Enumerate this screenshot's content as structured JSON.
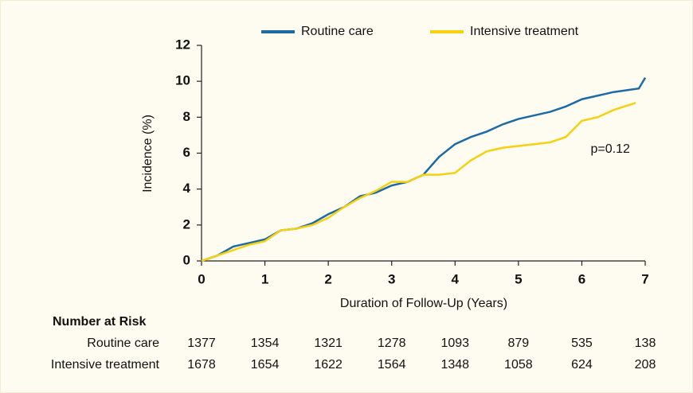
{
  "chart_data": {
    "type": "line",
    "xlabel": "Duration of Follow-Up (Years)",
    "ylabel": "Incidence (%)",
    "xlim": [
      0,
      7
    ],
    "xticks": [
      0,
      1,
      2,
      3,
      4,
      5,
      6,
      7
    ],
    "ylim": [
      0,
      12
    ],
    "yticks": [
      0,
      2,
      4,
      6,
      8,
      10,
      12
    ],
    "legend": "top",
    "series": [
      {
        "name": "Routine care",
        "color": "#1d6aa5",
        "x": [
          0,
          0.25,
          0.5,
          0.75,
          1,
          1.25,
          1.5,
          1.75,
          2,
          2.25,
          2.5,
          2.75,
          3,
          3.25,
          3.5,
          3.75,
          4,
          4.25,
          4.5,
          4.75,
          5,
          5.25,
          5.5,
          5.75,
          6,
          6.25,
          6.5,
          6.9,
          7
        ],
        "values": [
          0,
          0.3,
          0.8,
          1.0,
          1.2,
          1.7,
          1.8,
          2.1,
          2.6,
          3.0,
          3.6,
          3.8,
          4.2,
          4.4,
          4.8,
          5.8,
          6.5,
          6.9,
          7.2,
          7.6,
          7.9,
          8.1,
          8.3,
          8.6,
          9.0,
          9.2,
          9.4,
          9.6,
          10.2
        ]
      },
      {
        "name": "Intensive treatment",
        "color": "#f5d10f",
        "x": [
          0,
          0.25,
          0.5,
          0.75,
          1,
          1.25,
          1.5,
          1.75,
          2,
          2.25,
          2.5,
          2.75,
          3,
          3.25,
          3.5,
          3.75,
          4,
          4.25,
          4.5,
          4.75,
          5,
          5.25,
          5.5,
          5.75,
          6,
          6.25,
          6.5,
          6.85
        ],
        "values": [
          0,
          0.3,
          0.6,
          0.9,
          1.1,
          1.7,
          1.8,
          2.0,
          2.4,
          3.0,
          3.5,
          3.9,
          4.4,
          4.4,
          4.8,
          4.8,
          4.9,
          5.6,
          6.1,
          6.3,
          6.4,
          6.5,
          6.6,
          6.9,
          7.8,
          8.0,
          8.4,
          8.8
        ]
      }
    ],
    "annotations": [
      {
        "text": "p=0.12",
        "x": 6.45,
        "y": 6.2
      }
    ],
    "risk_table": {
      "title": "Number at Risk",
      "rows": [
        {
          "name": "Routine care",
          "values": [
            1377,
            1354,
            1321,
            1278,
            1093,
            879,
            535,
            138
          ]
        },
        {
          "name": "Intensive treatment",
          "values": [
            1678,
            1654,
            1622,
            1564,
            1348,
            1058,
            624,
            208
          ]
        }
      ]
    }
  }
}
